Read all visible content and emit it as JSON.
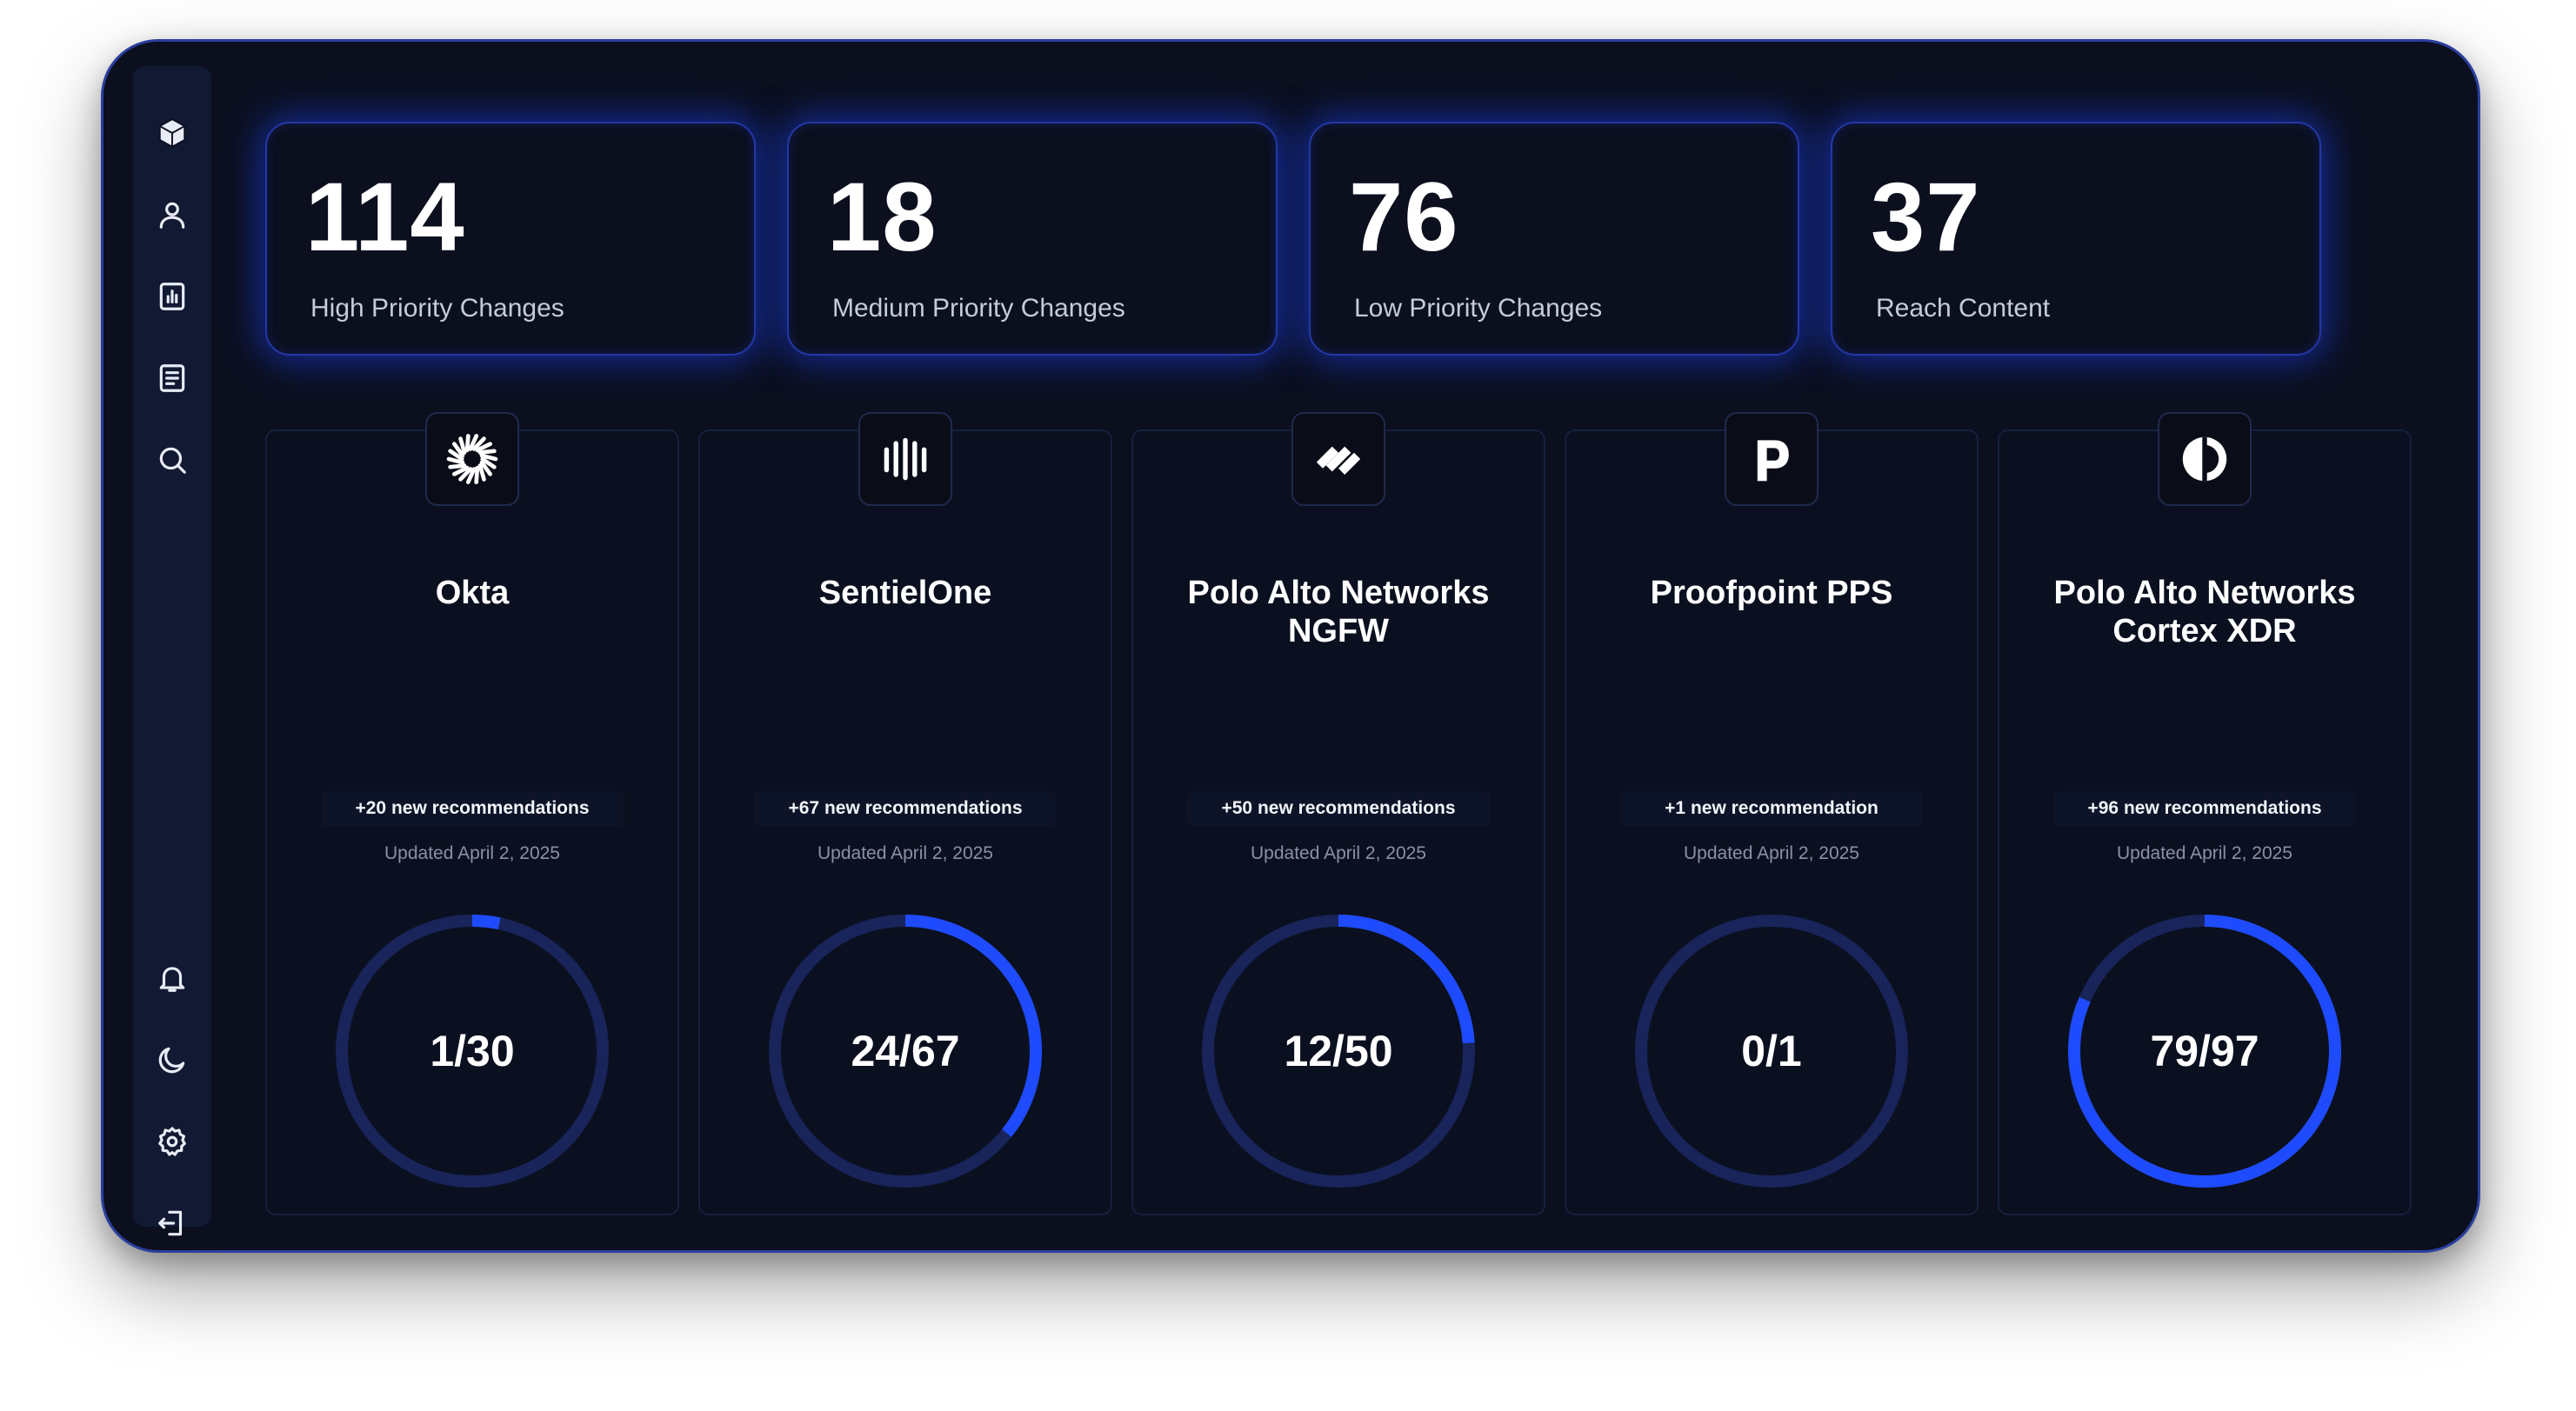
{
  "stats": [
    {
      "value": "114",
      "label": "High Priority Changes"
    },
    {
      "value": "18",
      "label": "Medium Priority Changes"
    },
    {
      "value": "76",
      "label": "Low Priority Changes"
    },
    {
      "value": "37",
      "label": "Reach Content"
    }
  ],
  "sidebar": {
    "top": [
      "cube-icon",
      "user-icon",
      "report-chart-icon",
      "document-icon",
      "search-icon"
    ],
    "bottom": [
      "bell-icon",
      "moon-icon",
      "gear-icon",
      "logout-icon"
    ]
  },
  "vendors": [
    {
      "name": "Okta",
      "recommendations": "+20 new recommendations",
      "updated": "Updated April 2, 2025",
      "progress_label": "1/30",
      "progress": 0.0333,
      "icon": "okta-logo-icon"
    },
    {
      "name": "SentielOne",
      "recommendations": "+67 new recommendations",
      "updated": "Updated April 2, 2025",
      "progress_label": "24/67",
      "progress": 0.3582,
      "icon": "sentinelone-logo-icon"
    },
    {
      "name": "Polo Alto Networks NGFW",
      "recommendations": "+50 new recommendations",
      "updated": "Updated April 2, 2025",
      "progress_label": "12/50",
      "progress": 0.24,
      "icon": "paloalto-logo-icon"
    },
    {
      "name": "Proofpoint PPS",
      "recommendations": "+1 new recommendation",
      "updated": "Updated April 2, 2025",
      "progress_label": "0/1",
      "progress": 0,
      "icon": "proofpoint-logo-icon"
    },
    {
      "name": "Polo Alto Networks Cortex XDR",
      "recommendations": "+96 new recommendations",
      "updated": "Updated April 2, 2025",
      "progress_label": "79/97",
      "progress": 0.8144,
      "icon": "cortex-logo-icon"
    }
  ],
  "colors": {
    "background": "#0b0f1e",
    "accent": "#1f4bff",
    "ring_track": "#18245a",
    "glow": "#1e46ff"
  }
}
